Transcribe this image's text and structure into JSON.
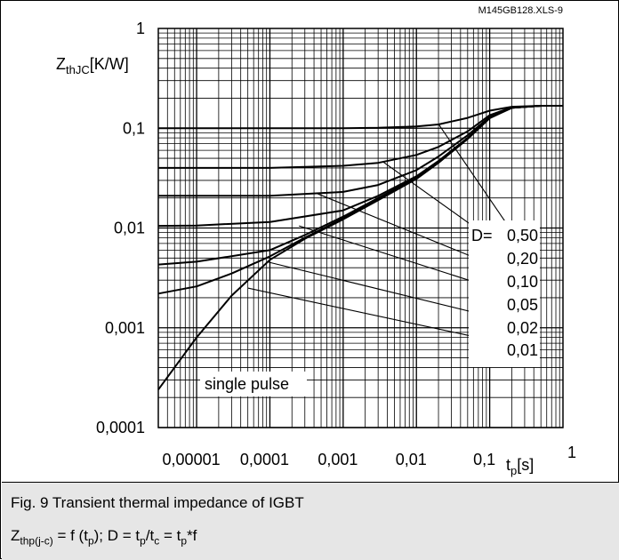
{
  "chart_data": {
    "type": "line",
    "title": "",
    "file_id": "M145GB128.XLS-9",
    "xscale": "log",
    "yscale": "log",
    "xlim": [
      3e-06,
      1
    ],
    "ylim": [
      0.0001,
      1
    ],
    "grid": true,
    "x_ticks": [
      "0,00001",
      "0,0001",
      "0,001",
      "0,01",
      "0,1",
      "1"
    ],
    "y_ticks": [
      "0,0001",
      "0,001",
      "0,01",
      "0,1",
      "1"
    ],
    "ylabel": {
      "base": "Z",
      "sub": "thJC",
      "unit": "[K/W]"
    },
    "xlabel": {
      "base": "t",
      "sub": "p",
      "unit": "[s]"
    },
    "legend_title": "D=",
    "legend_values": [
      "0,50",
      "0,20",
      "0,10",
      "0,05",
      "0,02",
      "0,01"
    ],
    "single_pulse_label": "single pulse",
    "series": [
      {
        "name": "D=0,50",
        "points": [
          [
            3e-06,
            0.1
          ],
          [
            0.001,
            0.1
          ],
          [
            0.003,
            0.101
          ],
          [
            0.01,
            0.104
          ],
          [
            0.02,
            0.109
          ],
          [
            0.05,
            0.127
          ],
          [
            0.1,
            0.15
          ],
          [
            0.2,
            0.164
          ],
          [
            0.5,
            0.168
          ],
          [
            1,
            0.168
          ]
        ]
      },
      {
        "name": "0,20",
        "points": [
          [
            3e-06,
            0.04
          ],
          [
            0.0001,
            0.04
          ],
          [
            0.001,
            0.042
          ],
          [
            0.003,
            0.045
          ],
          [
            0.01,
            0.054
          ],
          [
            0.02,
            0.065
          ],
          [
            0.05,
            0.093
          ],
          [
            0.1,
            0.135
          ],
          [
            0.2,
            0.162
          ],
          [
            0.5,
            0.168
          ],
          [
            1,
            0.168
          ]
        ]
      },
      {
        "name": "0,10",
        "points": [
          [
            3e-06,
            0.021
          ],
          [
            0.0001,
            0.021
          ],
          [
            0.001,
            0.023
          ],
          [
            0.003,
            0.027
          ],
          [
            0.01,
            0.038
          ],
          [
            0.02,
            0.052
          ],
          [
            0.05,
            0.085
          ],
          [
            0.1,
            0.13
          ],
          [
            0.2,
            0.16
          ],
          [
            0.5,
            0.168
          ],
          [
            1,
            0.168
          ]
        ]
      },
      {
        "name": "0,05",
        "points": [
          [
            3e-06,
            0.0105
          ],
          [
            1e-05,
            0.0106
          ],
          [
            0.0001,
            0.0115
          ],
          [
            0.001,
            0.015
          ],
          [
            0.003,
            0.021
          ],
          [
            0.01,
            0.033
          ],
          [
            0.02,
            0.047
          ],
          [
            0.05,
            0.08
          ],
          [
            0.1,
            0.128
          ],
          [
            0.2,
            0.16
          ],
          [
            0.5,
            0.168
          ],
          [
            1,
            0.168
          ]
        ]
      },
      {
        "name": "0,02",
        "points": [
          [
            3e-06,
            0.0043
          ],
          [
            1e-05,
            0.0046
          ],
          [
            0.0001,
            0.006
          ],
          [
            0.0003,
            0.0085
          ],
          [
            0.001,
            0.013
          ],
          [
            0.003,
            0.02
          ],
          [
            0.01,
            0.032
          ],
          [
            0.02,
            0.046
          ],
          [
            0.05,
            0.079
          ],
          [
            0.1,
            0.127
          ],
          [
            0.2,
            0.16
          ],
          [
            0.5,
            0.168
          ],
          [
            1,
            0.168
          ]
        ]
      },
      {
        "name": "0,01",
        "points": [
          [
            3e-06,
            0.0022
          ],
          [
            1e-05,
            0.0026
          ],
          [
            3e-05,
            0.0035
          ],
          [
            0.0001,
            0.0052
          ],
          [
            0.0003,
            0.008
          ],
          [
            0.001,
            0.0125
          ],
          [
            0.003,
            0.0195
          ],
          [
            0.01,
            0.032
          ],
          [
            0.02,
            0.046
          ],
          [
            0.05,
            0.079
          ],
          [
            0.1,
            0.127
          ],
          [
            0.2,
            0.16
          ],
          [
            0.5,
            0.168
          ],
          [
            1,
            0.168
          ]
        ]
      },
      {
        "name": "single pulse",
        "points": [
          [
            3e-06,
            0.00024
          ],
          [
            1e-05,
            0.0008
          ],
          [
            3e-05,
            0.0021
          ],
          [
            0.0001,
            0.0048
          ],
          [
            0.0003,
            0.0078
          ],
          [
            0.001,
            0.0122
          ],
          [
            0.003,
            0.019
          ],
          [
            0.01,
            0.031
          ],
          [
            0.02,
            0.045
          ],
          [
            0.05,
            0.078
          ],
          [
            0.1,
            0.126
          ],
          [
            0.2,
            0.16
          ],
          [
            0.5,
            0.168
          ],
          [
            1,
            0.168
          ]
        ]
      }
    ],
    "d_lines": [
      {
        "name": "0,50",
        "from": [
          0.02,
          0.11
        ],
        "to": [
          0.16,
          0.0118
        ]
      },
      {
        "name": "0,20",
        "from": [
          0.0035,
          0.046
        ],
        "to": [
          0.16,
          0.0062
        ]
      },
      {
        "name": "0,10",
        "from": [
          0.00045,
          0.022
        ],
        "to": [
          0.16,
          0.0038
        ]
      },
      {
        "name": "0,05",
        "from": [
          0.00025,
          0.0105
        ],
        "to": [
          0.16,
          0.0023
        ]
      },
      {
        "name": "0,02",
        "from": [
          9e-05,
          0.0046
        ],
        "to": [
          0.16,
          0.0012
        ]
      },
      {
        "name": "0,01",
        "from": [
          5e-05,
          0.0025
        ],
        "to": [
          0.16,
          0.0007
        ]
      }
    ]
  },
  "caption": {
    "line1": "Fig. 9 Transient thermal impedance of IGBT",
    "line2": {
      "z": "Z",
      "z_sub": "thp(j-c)",
      "eq1": " = f (t",
      "p_sub": "p",
      "eq2": "); D = t",
      "eq3": "/t",
      "c_sub": "c",
      "eq4": " = t",
      "eq5": "*f"
    }
  }
}
